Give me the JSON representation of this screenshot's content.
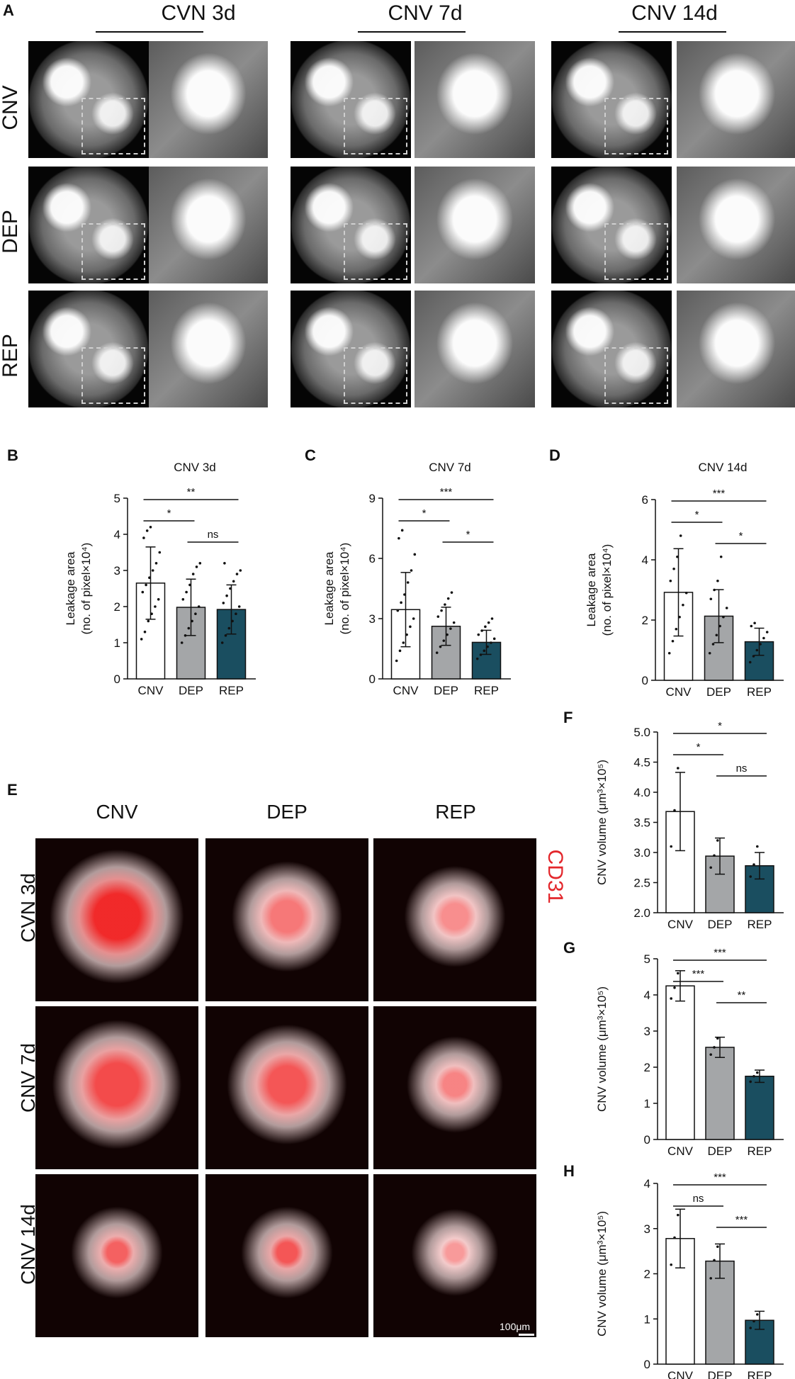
{
  "panel_a": {
    "letter": "A",
    "columns": [
      "CVN 3d",
      "CNV 7d",
      "CNV 14d"
    ],
    "rows": [
      "CNV",
      "DEP",
      "REP"
    ]
  },
  "panel_e": {
    "letter": "E",
    "columns": [
      "CNV",
      "DEP",
      "REP"
    ],
    "rows": [
      "CVN 3d",
      "CNV 7d",
      "CNV 14d"
    ],
    "stain_label": "CD31",
    "scale_bar": "100μm"
  },
  "colors": {
    "cnv_bar": "#ffffff",
    "dep_bar": "#a4a6a8",
    "rep_bar": "#1a4e60",
    "stain": "#e3262b"
  },
  "chart_data": [
    {
      "letter": "B",
      "type": "bar",
      "title": "CNV 3d",
      "categories": [
        "CNV",
        "DEP",
        "REP"
      ],
      "values": [
        2.65,
        1.98,
        1.92
      ],
      "errors": [
        1.0,
        0.78,
        0.68
      ],
      "ylabel_lines": [
        "Leakage area",
        "(no. of pixel×10⁴)"
      ],
      "ylim": [
        0,
        5
      ],
      "yticks": [
        0,
        1,
        2,
        3,
        4,
        5
      ],
      "points": [
        [
          1.1,
          1.3,
          1.6,
          1.8,
          2.0,
          2.2,
          2.4,
          2.6,
          2.8,
          3.0,
          3.2,
          3.5,
          3.9,
          4.1,
          4.2
        ],
        [
          1.0,
          1.2,
          1.4,
          1.6,
          1.8,
          2.0,
          2.2,
          2.4,
          2.6,
          2.9,
          3.1,
          3.2
        ],
        [
          1.0,
          1.2,
          1.4,
          1.6,
          1.8,
          2.0,
          2.1,
          2.3,
          2.5,
          2.7,
          2.9,
          3.0,
          3.2
        ]
      ],
      "significance": [
        {
          "from": 0,
          "to": 2,
          "label": "**"
        },
        {
          "from": 0,
          "to": 1,
          "label": "*"
        },
        {
          "from": 1,
          "to": 2,
          "label": "ns"
        }
      ]
    },
    {
      "letter": "C",
      "type": "bar",
      "title": "CNV 7d",
      "categories": [
        "CNV",
        "DEP",
        "REP"
      ],
      "values": [
        3.45,
        2.62,
        1.82
      ],
      "errors": [
        1.85,
        0.95,
        0.6
      ],
      "ylabel_lines": [
        "Leakage area",
        "(no. of pixel×10⁴)"
      ],
      "ylim": [
        0,
        9
      ],
      "yticks": [
        0,
        3,
        6,
        9
      ],
      "points": [
        [
          0.9,
          1.4,
          1.8,
          2.2,
          2.6,
          3.0,
          3.4,
          3.8,
          4.2,
          4.8,
          5.4,
          6.2,
          7.0,
          7.4
        ],
        [
          1.3,
          1.6,
          1.9,
          2.2,
          2.5,
          2.8,
          3.1,
          3.4,
          3.7,
          4.0,
          4.3
        ],
        [
          1.0,
          1.2,
          1.4,
          1.6,
          1.8,
          2.0,
          2.2,
          2.4,
          2.6,
          2.8,
          3.0
        ]
      ],
      "significance": [
        {
          "from": 0,
          "to": 2,
          "label": "***"
        },
        {
          "from": 0,
          "to": 1,
          "label": "*"
        },
        {
          "from": 1,
          "to": 2,
          "label": "*"
        }
      ]
    },
    {
      "letter": "D",
      "type": "bar",
      "title": "CNV 14d",
      "categories": [
        "CNV",
        "DEP",
        "REP"
      ],
      "values": [
        2.92,
        2.13,
        1.28
      ],
      "errors": [
        1.45,
        0.88,
        0.45
      ],
      "ylabel_lines": [
        "Leakage area",
        "(no. of pixel×10⁴)"
      ],
      "ylim": [
        0,
        6
      ],
      "yticks": [
        0,
        2,
        4,
        6
      ],
      "points": [
        [
          0.9,
          1.3,
          1.7,
          2.1,
          2.5,
          2.9,
          3.3,
          3.7,
          4.1,
          4.8
        ],
        [
          0.9,
          1.2,
          1.5,
          1.8,
          2.1,
          2.4,
          2.7,
          3.0,
          3.3,
          4.1
        ],
        [
          0.6,
          0.8,
          1.0,
          1.2,
          1.4,
          1.6,
          1.8,
          1.9
        ]
      ],
      "significance": [
        {
          "from": 0,
          "to": 2,
          "label": "***"
        },
        {
          "from": 0,
          "to": 1,
          "label": "*"
        },
        {
          "from": 1,
          "to": 2,
          "label": "*"
        }
      ]
    },
    {
      "letter": "F",
      "type": "bar",
      "title": "",
      "categories": [
        "CNV",
        "DEP",
        "REP"
      ],
      "values": [
        3.68,
        2.94,
        2.78
      ],
      "errors": [
        0.65,
        0.3,
        0.22
      ],
      "ylabel_lines": [
        "CNV volume (μm³×10⁵)"
      ],
      "ylim": [
        2.0,
        5.0
      ],
      "yticks": [
        2.0,
        2.5,
        3.0,
        3.5,
        4.0,
        4.5,
        5.0
      ],
      "points": [
        [
          3.1,
          3.7,
          4.4
        ],
        [
          2.75,
          2.95,
          3.2
        ],
        [
          2.6,
          2.8,
          3.1
        ]
      ],
      "significance": [
        {
          "from": 0,
          "to": 2,
          "label": "*"
        },
        {
          "from": 0,
          "to": 1,
          "label": "*"
        },
        {
          "from": 1,
          "to": 2,
          "label": "ns"
        }
      ]
    },
    {
      "letter": "G",
      "type": "bar",
      "title": "",
      "categories": [
        "CNV",
        "DEP",
        "REP"
      ],
      "values": [
        4.25,
        2.55,
        1.75
      ],
      "errors": [
        0.42,
        0.28,
        0.17
      ],
      "ylabel_lines": [
        "CNV volume (μm³×10⁵)"
      ],
      "ylim": [
        0,
        5
      ],
      "yticks": [
        0,
        1,
        2,
        3,
        4,
        5
      ],
      "points": [
        [
          3.9,
          4.2,
          4.6
        ],
        [
          2.35,
          2.55,
          2.8
        ],
        [
          1.6,
          1.75,
          1.85
        ]
      ],
      "significance": [
        {
          "from": 0,
          "to": 2,
          "label": "***"
        },
        {
          "from": 0,
          "to": 1,
          "label": "***"
        },
        {
          "from": 1,
          "to": 2,
          "label": "**"
        }
      ]
    },
    {
      "letter": "H",
      "type": "bar",
      "title": "",
      "categories": [
        "CNV",
        "DEP",
        "REP"
      ],
      "values": [
        2.78,
        2.28,
        0.97
      ],
      "errors": [
        0.65,
        0.38,
        0.2
      ],
      "ylabel_lines": [
        "CNV volume (μm³×10⁵)"
      ],
      "ylim": [
        0,
        4
      ],
      "yticks": [
        0,
        1,
        2,
        3,
        4
      ],
      "points": [
        [
          2.2,
          2.8,
          3.3
        ],
        [
          1.9,
          2.3,
          2.6
        ],
        [
          0.8,
          0.95,
          1.1
        ]
      ],
      "significance": [
        {
          "from": 0,
          "to": 2,
          "label": "***"
        },
        {
          "from": 0,
          "to": 1,
          "label": "ns"
        },
        {
          "from": 1,
          "to": 2,
          "label": "***"
        }
      ]
    }
  ]
}
